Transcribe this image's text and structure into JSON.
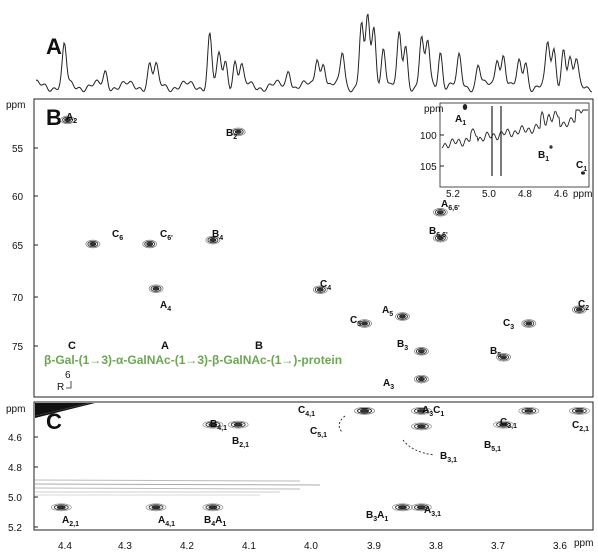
{
  "panels": {
    "A": "A",
    "B": "B",
    "C": "C"
  },
  "axis": {
    "unit": "ppm",
    "x_ticks": [
      "4.4",
      "4.3",
      "4.2",
      "4.1",
      "4.0",
      "3.9",
      "3.8",
      "3.7",
      "3.6"
    ],
    "b_y_ticks": [
      "55",
      "60",
      "65",
      "70",
      "75"
    ],
    "c_y_ticks": [
      "4.6",
      "4.8",
      "5.0",
      "5.2"
    ],
    "inset_x_ticks": [
      "5.2",
      "5.0",
      "4.8",
      "4.6"
    ],
    "inset_y_ticks": [
      "100",
      "105"
    ]
  },
  "sequence": {
    "text": "β-Gal-(1→3)-α-GalNAc-(1→3)-β-GalNAc-(1→)-protein",
    "residue_letters": [
      "C",
      "A",
      "B"
    ],
    "branch_position": "6",
    "branch_group": "R"
  },
  "chart_data": [
    {
      "type": "line",
      "title": "",
      "panel": "A",
      "description_of_axes": "1D 1H spectrum sharing the x axis (ppm) of panels B and C"
    },
    {
      "type": "scatter",
      "panel": "B",
      "xlabel": "",
      "ylabel": "ppm",
      "x_unit": "ppm (1H)",
      "y_unit": "ppm (13C)",
      "xlim": [
        4.42,
        3.54
      ],
      "ylim": [
        51.5,
        80
      ],
      "cross_peaks": [
        {
          "label": "A",
          "sub": "2",
          "x": 4.37,
          "y": 52.5
        },
        {
          "label": "B",
          "sub": "2",
          "x": 4.1,
          "y": 53.7
        },
        {
          "label": "C",
          "sub": "6",
          "x": 4.33,
          "y": 65.0
        },
        {
          "label": "C",
          "sub": "6'",
          "x": 4.24,
          "y": 65.0
        },
        {
          "label": "B",
          "sub": "4",
          "x": 4.14,
          "y": 64.6
        },
        {
          "label": "A",
          "sub": "4",
          "x": 4.23,
          "y": 69.5
        },
        {
          "label": "C",
          "sub": "4",
          "x": 3.97,
          "y": 69.6
        },
        {
          "label": "C",
          "sub": "5",
          "x": 3.9,
          "y": 73.0
        },
        {
          "label": "A",
          "sub": "5",
          "x": 3.84,
          "y": 72.3
        },
        {
          "label": "C",
          "sub": "3",
          "x": 3.64,
          "y": 73.0
        },
        {
          "label": "C",
          "sub": "2",
          "x": 3.56,
          "y": 71.6
        },
        {
          "label": "A",
          "sub": "6,6'",
          "x": 3.78,
          "y": 61.8
        },
        {
          "label": "B",
          "sub": "6,6'",
          "x": 3.78,
          "y": 64.4
        },
        {
          "label": "B",
          "sub": "3",
          "x": 3.81,
          "y": 75.8
        },
        {
          "label": "B",
          "sub": "5",
          "x": 3.68,
          "y": 76.4
        },
        {
          "label": "A",
          "sub": "3",
          "x": 3.81,
          "y": 78.6
        }
      ],
      "inset": {
        "xlim": [
          5.3,
          4.35
        ],
        "ylim": [
          95.5,
          108
        ],
        "peaks": [
          {
            "label": "A",
            "sub": "1",
            "x": 5.07,
            "y": 97.3
          },
          {
            "label": "B",
            "sub": "1",
            "x": 4.6,
            "y": 101.8
          },
          {
            "label": "C",
            "sub": "1",
            "x": 4.42,
            "y": 105.5
          }
        ]
      }
    },
    {
      "type": "scatter",
      "panel": "C",
      "ylabel": "ppm",
      "xlim": [
        4.42,
        3.54
      ],
      "ylim": [
        4.48,
        5.2
      ],
      "cross_peaks": [
        {
          "label": "A",
          "sub": "2,1",
          "x": 4.38,
          "y": 5.08
        },
        {
          "label": "A",
          "sub": "4,1",
          "x": 4.23,
          "y": 5.08
        },
        {
          "label": "B",
          "sub": "4",
          "sub2": "A",
          "sub2b": "1",
          "x": 4.14,
          "y": 5.08
        },
        {
          "label": "B",
          "sub": "4,1",
          "x": 4.14,
          "y": 4.6
        },
        {
          "label": "B",
          "sub": "2,1",
          "x": 4.1,
          "y": 4.6
        },
        {
          "label": "C",
          "sub": "4,1",
          "x": 3.9,
          "y": 4.52
        },
        {
          "label": "C",
          "sub": "5,1",
          "x": 3.9,
          "y": 4.52
        },
        {
          "label": "A",
          "sub": "3",
          "sub2": "C",
          "sub2b": "1",
          "x": 3.81,
          "y": 4.52
        },
        {
          "label": "B",
          "sub": "3,1",
          "x": 3.81,
          "y": 4.61
        },
        {
          "label": "C",
          "sub": "3,1",
          "x": 3.64,
          "y": 4.52
        },
        {
          "label": "B",
          "sub": "5,1",
          "x": 3.68,
          "y": 4.6
        },
        {
          "label": "C",
          "sub": "2,1",
          "x": 3.56,
          "y": 4.52
        },
        {
          "label": "B",
          "sub": "3",
          "sub2": "A",
          "sub2b": "1",
          "x": 3.84,
          "y": 5.08
        },
        {
          "label": "A",
          "sub": "3,1",
          "x": 3.81,
          "y": 5.08
        }
      ]
    }
  ]
}
